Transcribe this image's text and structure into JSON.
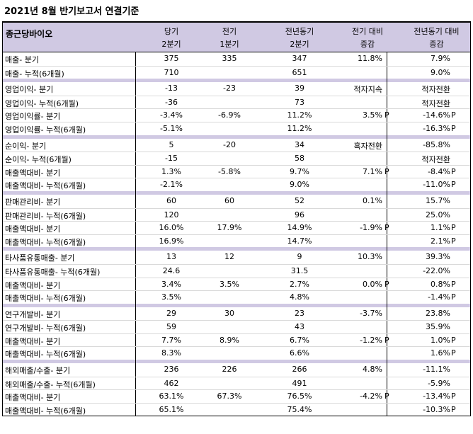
{
  "title": "2021년 8월 반기보고서 연결기준",
  "header": {
    "company": "종근당바이오",
    "col_cur": [
      "당기",
      "2분기"
    ],
    "col_prev": [
      "전기",
      "1분기"
    ],
    "col_yoy": [
      "전년동기",
      "2분기"
    ],
    "col_qoq": [
      "전기 대비",
      "증감"
    ],
    "col_yoyd": [
      "전년동기 대비",
      "증감"
    ]
  },
  "sections": [
    {
      "rows": [
        {
          "label": "매출- 분기",
          "cur": "375",
          "prev": "335",
          "yoy": "347",
          "qoq": "11.8%",
          "qoq_p": "",
          "yoyd": "7.9%",
          "yoyd_p": ""
        },
        {
          "label": "매출- 누적(6개월)",
          "cur": "710",
          "prev": "",
          "yoy": "651",
          "qoq": "",
          "qoq_p": "",
          "yoyd": "9.0%",
          "yoyd_p": ""
        }
      ]
    },
    {
      "rows": [
        {
          "label": "영업이익- 분기",
          "cur": "-13",
          "prev": "-23",
          "yoy": "39",
          "qoq": "적자지속",
          "qoq_p": "",
          "yoyd": "적자전환",
          "yoyd_p": ""
        },
        {
          "label": "영업이익- 누적(6개월)",
          "cur": "-36",
          "prev": "",
          "yoy": "73",
          "qoq": "",
          "qoq_p": "",
          "yoyd": "적자전환",
          "yoyd_p": ""
        },
        {
          "label": "영업이익률- 분기",
          "cur": "-3.4%",
          "prev": "-6.9%",
          "yoy": "11.2%",
          "qoq": "3.5%",
          "qoq_p": "P",
          "yoyd": "-14.6%",
          "yoyd_p": "P"
        },
        {
          "label": "영업이익률- 누적(6개월)",
          "cur": "-5.1%",
          "prev": "",
          "yoy": "11.2%",
          "qoq": "",
          "qoq_p": "",
          "yoyd": "-16.3%",
          "yoyd_p": "P"
        }
      ]
    },
    {
      "rows": [
        {
          "label": "순이익- 분기",
          "cur": "5",
          "prev": "-20",
          "yoy": "34",
          "qoq": "흑자전환",
          "qoq_p": "",
          "yoyd": "-85.8%",
          "yoyd_p": ""
        },
        {
          "label": "순이익- 누적(6개월)",
          "cur": "-15",
          "prev": "",
          "yoy": "58",
          "qoq": "",
          "qoq_p": "",
          "yoyd": "적자전환",
          "yoyd_p": ""
        },
        {
          "label": "매출액대비- 분기",
          "cur": "1.3%",
          "prev": "-5.8%",
          "yoy": "9.7%",
          "qoq": "7.1%",
          "qoq_p": "P",
          "yoyd": "-8.4%",
          "yoyd_p": "P"
        },
        {
          "label": "매출액대비- 누적(6개월)",
          "cur": "-2.1%",
          "prev": "",
          "yoy": "9.0%",
          "qoq": "",
          "qoq_p": "",
          "yoyd": "-11.0%",
          "yoyd_p": "P"
        }
      ]
    },
    {
      "rows": [
        {
          "label": "판매관리비- 분기",
          "cur": "60",
          "prev": "60",
          "yoy": "52",
          "qoq": "0.1%",
          "qoq_p": "",
          "yoyd": "15.7%",
          "yoyd_p": ""
        },
        {
          "label": "판매관리비- 누적(6개월)",
          "cur": "120",
          "prev": "",
          "yoy": "96",
          "qoq": "",
          "qoq_p": "",
          "yoyd": "25.0%",
          "yoyd_p": ""
        },
        {
          "label": "매출액대비- 분기",
          "cur": "16.0%",
          "prev": "17.9%",
          "yoy": "14.9%",
          "qoq": "-1.9%",
          "qoq_p": "P",
          "yoyd": "1.1%",
          "yoyd_p": "P"
        },
        {
          "label": "매출액대비- 누적(6개월)",
          "cur": "16.9%",
          "prev": "",
          "yoy": "14.7%",
          "qoq": "",
          "qoq_p": "",
          "yoyd": "2.1%",
          "yoyd_p": "P"
        }
      ]
    },
    {
      "rows": [
        {
          "label": "타사품유통매출- 분기",
          "cur": "13",
          "prev": "12",
          "yoy": "9",
          "qoq": "10.3%",
          "qoq_p": "",
          "yoyd": "39.3%",
          "yoyd_p": ""
        },
        {
          "label": "타사품유통매출- 누적(6개월)",
          "cur": "24.6",
          "prev": "",
          "yoy": "31.5",
          "qoq": "",
          "qoq_p": "",
          "yoyd": "-22.0%",
          "yoyd_p": ""
        },
        {
          "label": "매출액대비- 분기",
          "cur": "3.4%",
          "prev": "3.5%",
          "yoy": "2.7%",
          "qoq": "0.0%",
          "qoq_p": "P",
          "yoyd": "0.8%",
          "yoyd_p": "P"
        },
        {
          "label": "매출액대비- 누적(6개월)",
          "cur": "3.5%",
          "prev": "",
          "yoy": "4.8%",
          "qoq": "",
          "qoq_p": "",
          "yoyd": "-1.4%",
          "yoyd_p": "P"
        }
      ]
    },
    {
      "rows": [
        {
          "label": "연구개발비- 분기",
          "cur": "29",
          "prev": "30",
          "yoy": "23",
          "qoq": "-3.7%",
          "qoq_p": "",
          "yoyd": "23.8%",
          "yoyd_p": ""
        },
        {
          "label": "연구개발비- 누적(6개월)",
          "cur": "59",
          "prev": "",
          "yoy": "43",
          "qoq": "",
          "qoq_p": "",
          "yoyd": "35.9%",
          "yoyd_p": ""
        },
        {
          "label": "매출액대비- 분기",
          "cur": "7.7%",
          "prev": "8.9%",
          "yoy": "6.7%",
          "qoq": "-1.2%",
          "qoq_p": "P",
          "yoyd": "1.0%",
          "yoyd_p": "P"
        },
        {
          "label": "매출액대비- 누적(6개월)",
          "cur": "8.3%",
          "prev": "",
          "yoy": "6.6%",
          "qoq": "",
          "qoq_p": "",
          "yoyd": "1.6%",
          "yoyd_p": "P"
        }
      ]
    },
    {
      "rows": [
        {
          "label": "해외매출/수출- 분기",
          "cur": "236",
          "prev": "226",
          "yoy": "266",
          "qoq": "4.8%",
          "qoq_p": "",
          "yoyd": "-11.1%",
          "yoyd_p": ""
        },
        {
          "label": "해외매출/수출- 누적(6개월)",
          "cur": "462",
          "prev": "",
          "yoy": "491",
          "qoq": "",
          "qoq_p": "",
          "yoyd": "-5.9%",
          "yoyd_p": ""
        },
        {
          "label": "매출액대비- 분기",
          "cur": "63.1%",
          "prev": "67.3%",
          "yoy": "76.5%",
          "qoq": "-4.2%",
          "qoq_p": "P",
          "yoyd": "-13.4%",
          "yoyd_p": "P"
        },
        {
          "label": "매출액대비- 누적(6개월)",
          "cur": "65.1%",
          "prev": "",
          "yoy": "75.4%",
          "qoq": "",
          "qoq_p": "",
          "yoyd": "-10.3%",
          "yoyd_p": "P"
        }
      ]
    }
  ]
}
